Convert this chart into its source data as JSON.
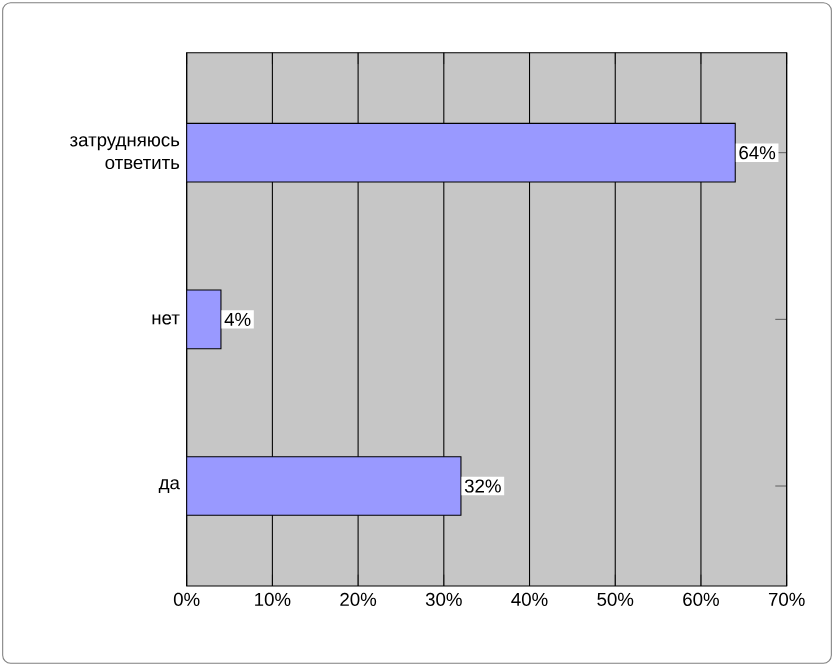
{
  "chart_data": {
    "type": "bar",
    "orientation": "horizontal",
    "categories": [
      "затрудняюсь ответить",
      "нет",
      "да"
    ],
    "values": [
      64,
      4,
      32
    ],
    "value_labels": [
      "64%",
      "4%",
      "32%"
    ],
    "color": "#9999ff",
    "xlim": [
      0,
      70
    ],
    "xticks": [
      {
        "value": 0,
        "label": "0%"
      },
      {
        "value": 10,
        "label": "10%"
      },
      {
        "value": 20,
        "label": "20%"
      },
      {
        "value": 30,
        "label": "30%"
      },
      {
        "value": 40,
        "label": "40%"
      },
      {
        "value": 50,
        "label": "50%"
      },
      {
        "value": 60,
        "label": "60%"
      },
      {
        "value": 70,
        "label": "70%"
      }
    ],
    "grid": "x"
  }
}
